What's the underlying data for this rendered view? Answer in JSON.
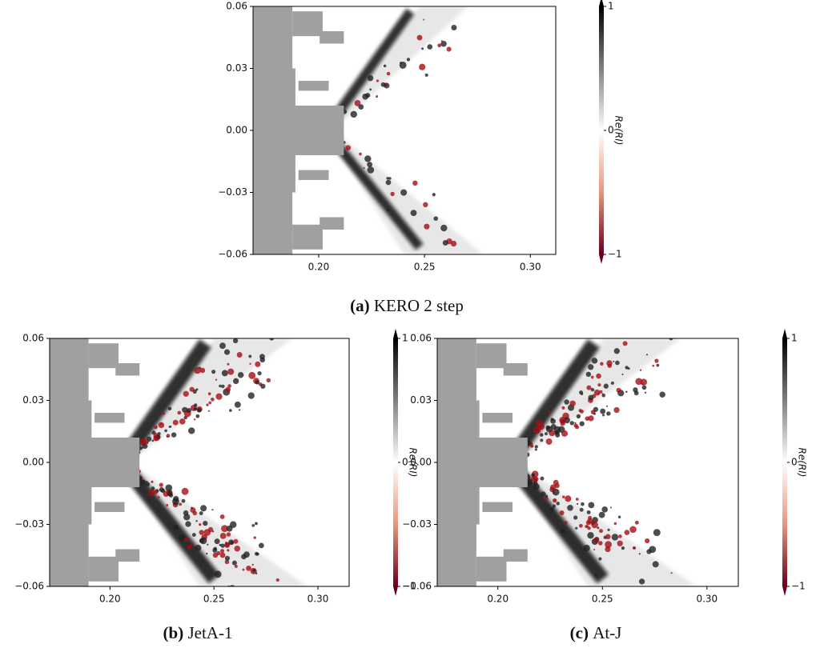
{
  "figure": {
    "panels": [
      {
        "caption_label": "(a)",
        "caption_text": "KERO 2 step",
        "xlim": [
          0.169,
          0.312
        ],
        "ylim": [
          -0.06,
          0.06
        ],
        "xticks": [
          {
            "value": 0.2,
            "label": "0.20"
          },
          0.25,
          {
            "value": 0.3,
            "label": "0.30"
          }
        ],
        "yticks": [
          {
            "value": -0.06,
            "label": "−0.06"
          },
          {
            "value": -0.03,
            "label": "−0.03"
          },
          {
            "value": 0,
            "label": "0.00"
          },
          0.03,
          0.06
        ],
        "colorbar_label": "Re(RI)",
        "clim": [
          -1,
          1
        ],
        "cticks": [
          {
            "value": -1,
            "label": "−1"
          },
          0,
          1
        ]
      },
      {
        "caption_label": "(b)",
        "caption_text": "JetA-1",
        "xlim": [
          0.171,
          0.315
        ],
        "ylim": [
          -0.06,
          0.06
        ],
        "xticks": [
          {
            "value": 0.2,
            "label": "0.20"
          },
          0.25,
          {
            "value": 0.3,
            "label": "0.30"
          }
        ],
        "yticks": [
          {
            "value": -0.06,
            "label": "−0.06"
          },
          {
            "value": -0.03,
            "label": "−0.03"
          },
          {
            "value": 0,
            "label": "0.00"
          },
          0.03,
          0.06
        ],
        "colorbar_label": "Re(RI)",
        "clim": [
          -1,
          1
        ],
        "cticks": [
          {
            "value": -1,
            "label": "−1"
          },
          0,
          1
        ]
      },
      {
        "caption_label": "(c)",
        "caption_text": "At-J",
        "xlim": [
          0.171,
          0.315
        ],
        "ylim": [
          -0.06,
          0.06
        ],
        "xticks": [
          {
            "value": 0.2,
            "label": "0.20"
          },
          0.25,
          {
            "value": 0.3,
            "label": "0.30"
          }
        ],
        "yticks": [
          {
            "value": -0.06,
            "label": "−0.06"
          },
          {
            "value": -0.03,
            "label": "−0.03"
          },
          {
            "value": 0,
            "label": "0.00"
          },
          0.03,
          0.06
        ],
        "colorbar_label": "Re(RI)",
        "clim": [
          -1,
          1
        ],
        "cticks": [
          {
            "value": -1,
            "label": "−1"
          },
          0,
          1
        ]
      }
    ]
  }
}
